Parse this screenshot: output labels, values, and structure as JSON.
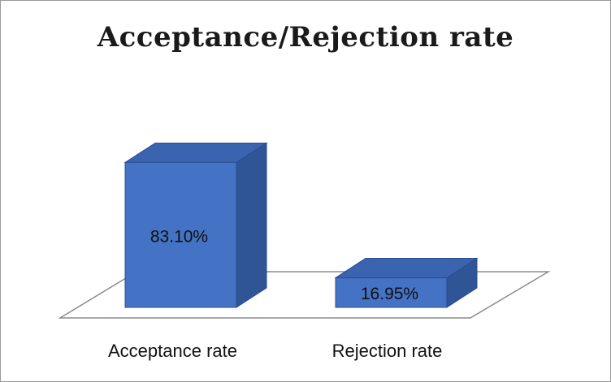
{
  "chart_data": {
    "type": "bar",
    "title": "Acceptance/Rejection rate",
    "categories": [
      "Acceptance rate",
      "Rejection rate"
    ],
    "values": [
      83.1,
      16.95
    ],
    "value_labels": [
      "83.10%",
      "16.95%"
    ],
    "xlabel": "",
    "ylabel": "",
    "ylim": [
      0,
      100
    ],
    "grid": false,
    "legend": "none",
    "style": "3d-column",
    "colors": {
      "front": "#4472c4",
      "side": "#2f5597",
      "top": "#3a63b0",
      "edge": "#2a4d8f",
      "floor": "#8c8c8c"
    }
  }
}
